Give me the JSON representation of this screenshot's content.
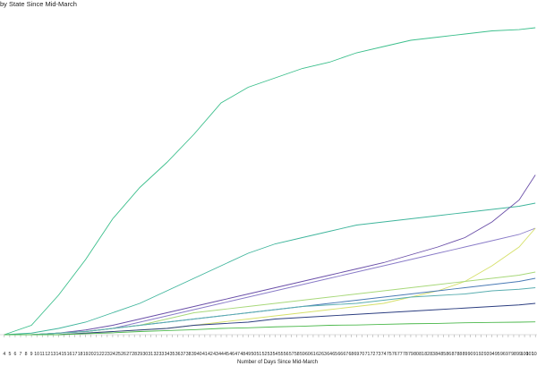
{
  "chart_data": {
    "type": "line",
    "title": "by State Since Mid-March",
    "x_label": "Number of Days Since Mid-March",
    "x": [
      4,
      9,
      14,
      19,
      24,
      29,
      34,
      39,
      44,
      49,
      54,
      59,
      64,
      69,
      74,
      79,
      84,
      89,
      94,
      99,
      102
    ],
    "xlim": [
      3.2,
      102.3
    ],
    "xticks": [
      4,
      5,
      6,
      7,
      8,
      9,
      10,
      11,
      12,
      13,
      14,
      15,
      16,
      17,
      18,
      19,
      20,
      21,
      22,
      23,
      24,
      25,
      26,
      27,
      28,
      29,
      30,
      31,
      32,
      33,
      34,
      35,
      36,
      37,
      38,
      39,
      40,
      41,
      42,
      43,
      44,
      45,
      46,
      47,
      48,
      49,
      50,
      51,
      52,
      53,
      54,
      55,
      56,
      57,
      58,
      59,
      60,
      61,
      62,
      63,
      64,
      65,
      66,
      67,
      68,
      69,
      70,
      71,
      72,
      73,
      74,
      75,
      76,
      77,
      78,
      79,
      80,
      81,
      82,
      83,
      84,
      85,
      86,
      87,
      88,
      89,
      90,
      91,
      92,
      93,
      94,
      95,
      96,
      97,
      98,
      99,
      100,
      101,
      102
    ],
    "ylim": [
      0,
      100
    ],
    "series": [
      {
        "color": "#3cbf8c",
        "values": [
          0,
          3,
          12.6,
          24,
          37,
          47,
          55,
          64,
          74,
          79,
          82,
          85,
          87,
          90,
          92,
          94,
          95,
          96,
          97,
          97.4,
          98
        ]
      },
      {
        "color": "#3fb59c",
        "values": [
          0,
          0.5,
          2,
          4,
          7,
          10,
          14,
          18,
          22,
          26,
          29,
          31,
          33,
          35,
          36,
          37,
          38,
          39,
          40,
          41,
          42
        ]
      },
      {
        "color": "#6a4fa8",
        "values": [
          0,
          0,
          0.5,
          1.5,
          3,
          5,
          7,
          9,
          11,
          13,
          15,
          17,
          19,
          21,
          23,
          25.5,
          28,
          31,
          36,
          43,
          51
        ]
      },
      {
        "color": "#8a7cc8",
        "values": [
          0,
          0,
          0.5,
          1,
          2,
          4,
          6,
          8,
          10,
          12,
          14,
          16,
          18,
          20,
          22,
          24,
          26,
          28,
          30,
          32,
          34
        ]
      },
      {
        "color": "#d6e06a",
        "values": [
          0,
          0,
          0,
          0.5,
          1,
          1.5,
          2,
          3,
          4,
          5,
          6,
          7,
          8,
          9,
          10,
          12,
          14,
          17,
          22,
          28,
          34
        ]
      },
      {
        "color": "#4a7ab5",
        "values": [
          0,
          0,
          0.5,
          1,
          2,
          3,
          4,
          5,
          6,
          7,
          8,
          9,
          10,
          11,
          12,
          13,
          14,
          15,
          16,
          17,
          18
        ]
      },
      {
        "color": "#a8d87a",
        "values": [
          0,
          0,
          0.5,
          1,
          2,
          3,
          5,
          7,
          8,
          9,
          10,
          11,
          12,
          13,
          14,
          15,
          16,
          17,
          18,
          19,
          20
        ]
      },
      {
        "color": "#2c3e80",
        "values": [
          0,
          0,
          0,
          0.5,
          1,
          1.5,
          2,
          3,
          3.5,
          4,
          5,
          5.5,
          6,
          6.5,
          7,
          7.5,
          8,
          8.5,
          9,
          9.5,
          10
        ]
      },
      {
        "color": "#5aaeb0",
        "values": [
          0,
          0,
          0.5,
          1,
          2,
          3,
          4,
          5,
          6,
          7,
          8,
          9,
          9.5,
          10,
          11,
          12,
          12.5,
          13,
          14,
          14.5,
          15
        ]
      },
      {
        "color": "#4cb84c",
        "values": [
          0,
          0,
          0,
          0.3,
          0.6,
          1,
          1.3,
          1.6,
          2,
          2.2,
          2.5,
          2.7,
          3,
          3.1,
          3.3,
          3.5,
          3.6,
          3.8,
          3.9,
          4,
          4.1
        ]
      }
    ]
  }
}
